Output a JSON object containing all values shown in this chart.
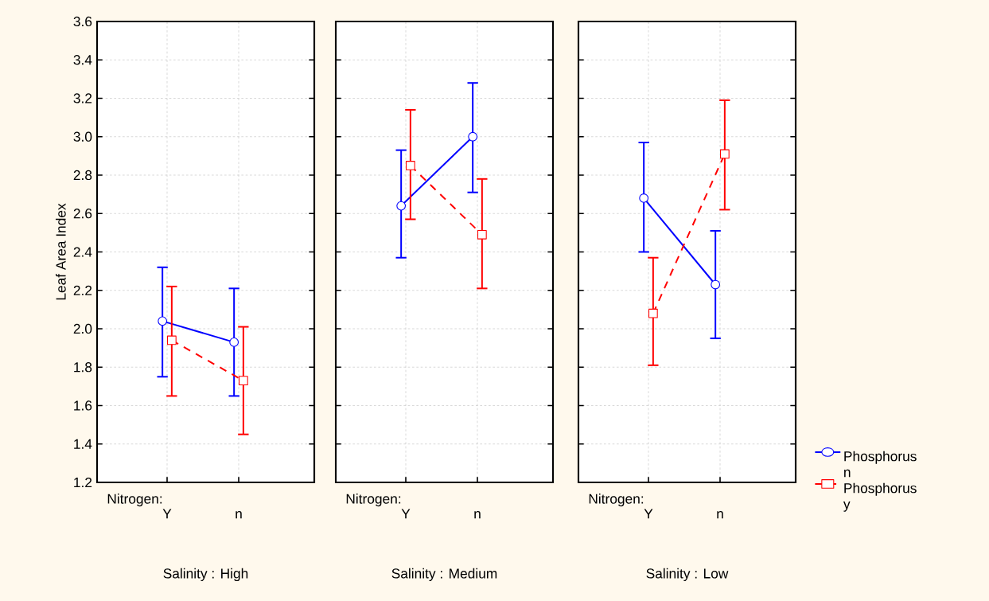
{
  "chart_data": [
    {
      "type": "line",
      "categories": [
        "Y",
        "n"
      ],
      "xlabel": "Salinity : High",
      "ylabel": "Leaf Area Index",
      "annotations": [
        "Nitrogen:"
      ],
      "ylim": [
        1.2,
        3.6
      ],
      "yticks": [
        1.2,
        1.4,
        1.6,
        1.8,
        {
          "value": 2,
          "label": "2.0"
        },
        2.2,
        2.4,
        2.6,
        2.8,
        {
          "value": 3,
          "label": "3.0"
        },
        3.2,
        3.4,
        3.6
      ],
      "grid": true,
      "series": [
        {
          "color": "#0000ff",
          "marker": "circle",
          "line_style": "solid",
          "values": [
            2.04,
            1.93
          ],
          "errors": [
            [
              1.75,
              2.32
            ],
            [
              1.65,
              2.21
            ]
          ]
        },
        {
          "color": "#ff0000",
          "marker": "square",
          "line_style": "dashed",
          "values": [
            1.94,
            1.73
          ],
          "errors": [
            [
              1.65,
              2.22
            ],
            [
              1.45,
              2.01
            ]
          ]
        }
      ]
    },
    {
      "type": "line",
      "categories": [
        "Y",
        "n"
      ],
      "xlabel": "Salinity : Medium",
      "annotations": [
        "Nitrogen:"
      ],
      "ylim": [
        1.2,
        3.6
      ],
      "yticks": [
        1.2,
        1.4,
        1.6,
        1.8,
        2.0,
        2.2,
        2.4,
        2.6,
        2.8,
        3.0,
        3.2,
        3.4,
        3.6
      ],
      "tick_labels": "x",
      "grid": true,
      "series": [
        {
          "color": "#0000ff",
          "marker": "circle",
          "line_style": "solid",
          "values": [
            2.64,
            3.0
          ],
          "errors": [
            [
              2.37,
              2.93
            ],
            [
              2.71,
              3.28
            ]
          ]
        },
        {
          "color": "#ff0000",
          "marker": "square",
          "line_style": "dashed",
          "values": [
            2.85,
            2.49
          ],
          "errors": [
            [
              2.57,
              3.14
            ],
            [
              2.21,
              2.78
            ]
          ]
        }
      ]
    },
    {
      "type": "line",
      "categories": [
        "Y",
        "n"
      ],
      "xlabel": "Salinity : Low",
      "annotations": [
        "Nitrogen:"
      ],
      "ylim": [
        1.2,
        3.6
      ],
      "yticks": [
        1.2,
        1.4,
        1.6,
        1.8,
        2.0,
        2.2,
        2.4,
        2.6,
        2.8,
        3.0,
        3.2,
        3.4,
        3.6
      ],
      "tick_labels": "x",
      "grid": true,
      "legend": "right",
      "series": [
        {
          "name": "Phosphorus n",
          "color": "#0000ff",
          "marker": "circle",
          "line_style": "solid",
          "values": [
            2.68,
            2.23
          ],
          "errors": [
            [
              2.4,
              2.97
            ],
            [
              1.95,
              2.51
            ]
          ]
        },
        {
          "name": "Phosphorus y",
          "color": "#ff0000",
          "marker": "square",
          "line_style": "dashed",
          "values": [
            2.08,
            2.91
          ],
          "errors": [
            [
              1.81,
              2.37
            ],
            [
              2.62,
              3.19
            ]
          ]
        }
      ]
    }
  ]
}
